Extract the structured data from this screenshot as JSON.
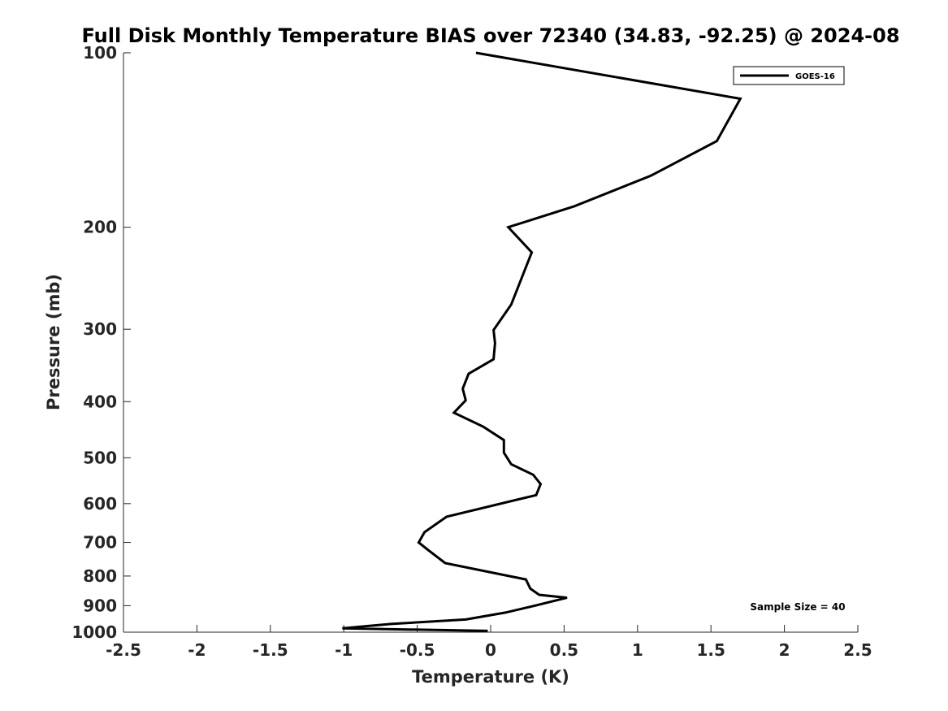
{
  "chart_data": {
    "type": "line",
    "title": "Full Disk Monthly Temperature BIAS over 72340 (34.83, -92.25) @ 2024-08",
    "xlabel": "Temperature (K)",
    "ylabel": "Pressure (mb)",
    "xlim": [
      -2.5,
      2.5
    ],
    "ylim": [
      100,
      1000
    ],
    "y_scale": "log",
    "y_reversed": true,
    "x_ticks": [
      -2.5,
      -2,
      -1.5,
      -1,
      -0.5,
      0,
      0.5,
      1,
      1.5,
      2,
      2.5
    ],
    "x_tick_labels": [
      "-2.5",
      "-2",
      "-1.5",
      "-1",
      "-0.5",
      "0",
      "0.5",
      "1",
      "1.5",
      "2",
      "2.5"
    ],
    "y_ticks": [
      100,
      200,
      300,
      400,
      500,
      600,
      700,
      800,
      900,
      1000
    ],
    "y_tick_labels": [
      "100",
      "200",
      "300",
      "400",
      "500",
      "600",
      "700",
      "800",
      "900",
      "1000"
    ],
    "grid": false,
    "legend": {
      "position": "top-right"
    },
    "annotation": "Sample Size = 40",
    "series": [
      {
        "name": "GOES-16",
        "color": "#000000",
        "x": [
          -0.1,
          1.7,
          1.54,
          1.09,
          0.57,
          0.12,
          0.28,
          0.14,
          0.02,
          0.03,
          0.02,
          -0.15,
          -0.19,
          -0.17,
          -0.25,
          -0.05,
          0.09,
          0.09,
          0.14,
          0.29,
          0.34,
          0.31,
          -0.3,
          -0.45,
          -0.49,
          -0.43,
          -0.31,
          0.24,
          0.27,
          0.33,
          0.52,
          0.3,
          0.1,
          -0.17,
          -0.68,
          -1.01,
          -0.02
        ],
        "y": [
          100,
          120,
          142,
          163,
          184,
          200,
          221,
          272,
          301,
          317,
          338,
          358,
          380,
          398,
          418,
          442,
          466,
          490,
          513,
          535,
          555,
          580,
          632,
          672,
          700,
          720,
          760,
          811,
          841,
          862,
          872,
          900,
          925,
          951,
          968,
          985,
          995
        ]
      }
    ]
  }
}
